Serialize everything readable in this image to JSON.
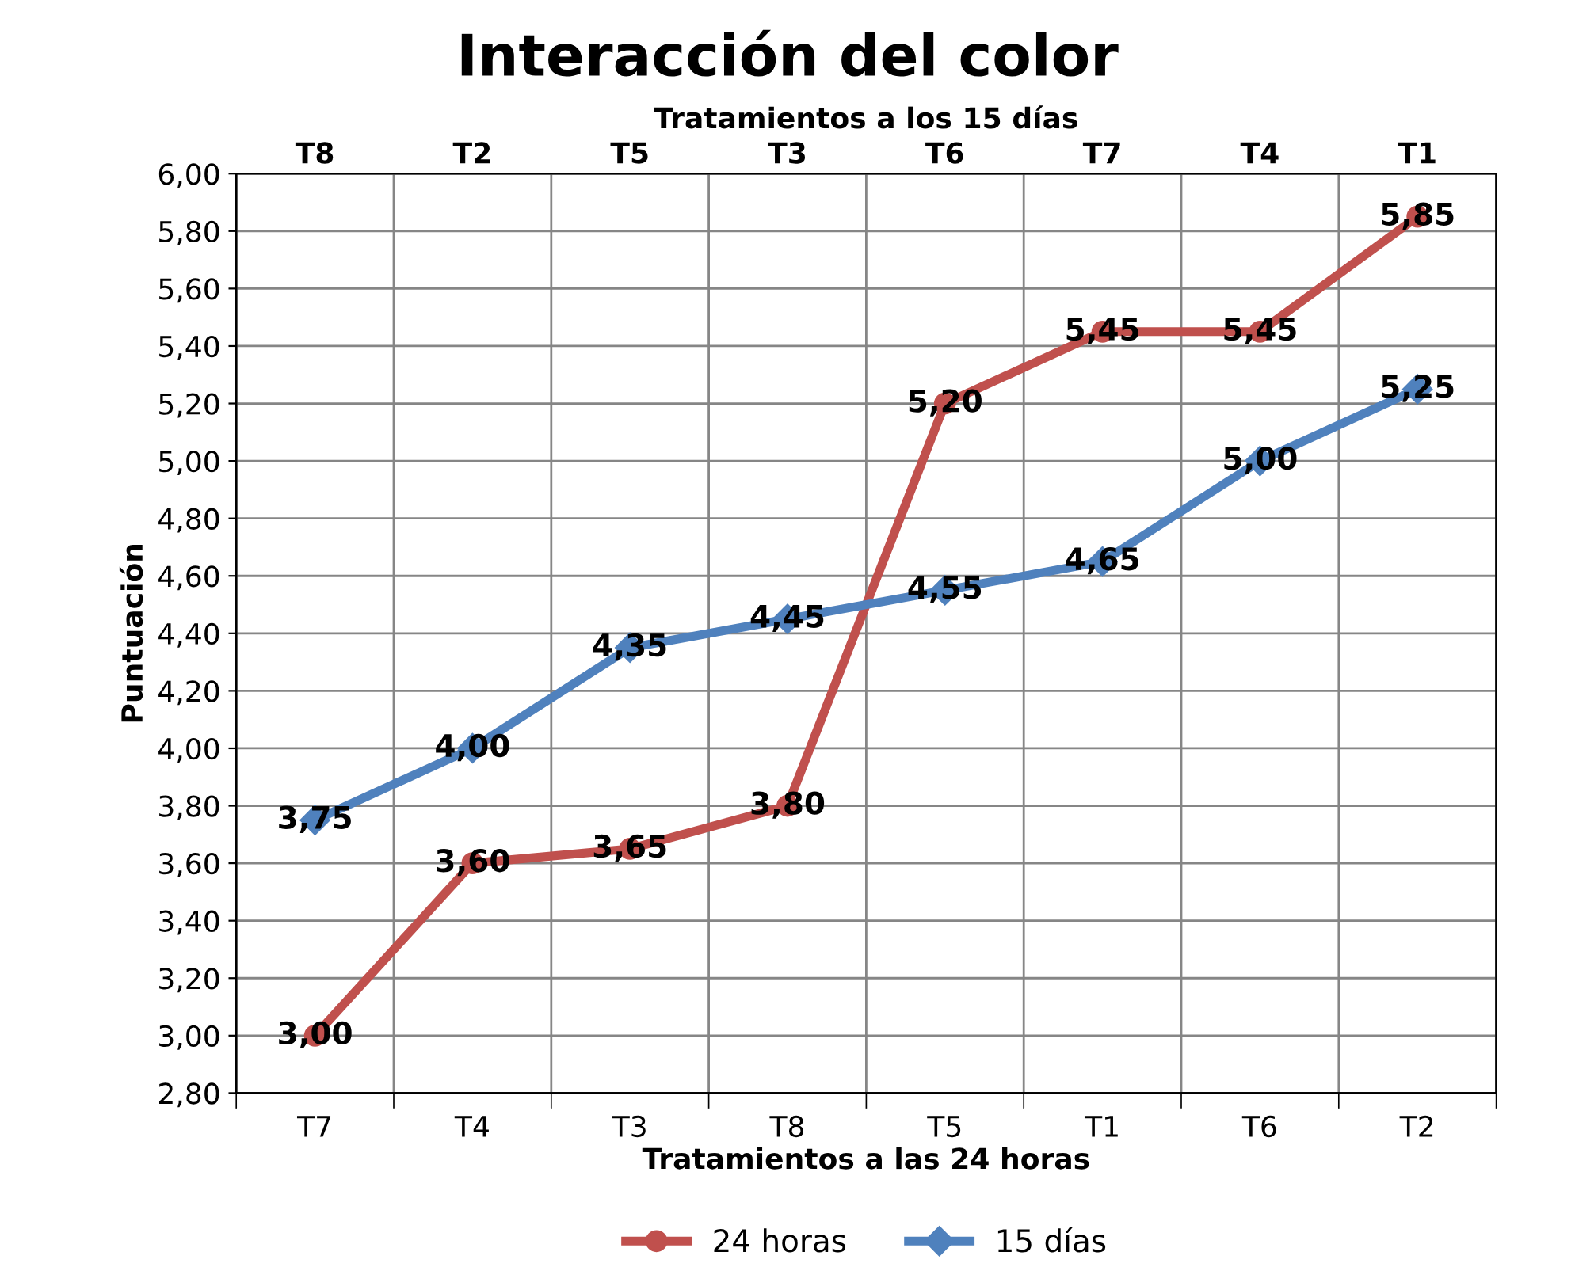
{
  "chart_data": {
    "type": "line",
    "title": "Interacción del color",
    "xlabel": "Tratamientos a las 24 horas",
    "x2label": "Tratamientos a los 15 días",
    "ylabel": "Puntuación",
    "categories": [
      "T7",
      "T4",
      "T3",
      "T8",
      "T5",
      "T1",
      "T6",
      "T2"
    ],
    "series": [
      {
        "name": "24 horas",
        "color": "#c0504d",
        "marker": "circle",
        "values": [
          3.0,
          3.6,
          3.65,
          3.8,
          5.2,
          5.45,
          5.45,
          5.85
        ],
        "value_labels": [
          "3,00",
          "3,60",
          "3,65",
          "3,80",
          "5,20",
          "5,45",
          "5,45",
          "5,85"
        ]
      },
      {
        "name": "15 días",
        "color": "#4f81bd",
        "marker": "diamond",
        "values": [
          3.75,
          4.0,
          4.35,
          4.45,
          4.55,
          4.65,
          5.0,
          5.25
        ],
        "value_labels": [
          "3,75",
          "4,00",
          "4,35",
          "4,45",
          "4,55",
          "4,65",
          "5,00",
          "5,25"
        ]
      }
    ],
    "annotations": [
      "T8",
      "T2",
      "T5",
      "T3",
      "T6",
      "T7",
      "T4",
      "T1"
    ],
    "ylim": [
      2.8,
      6.0
    ],
    "yticks": [
      {
        "value": 2.8,
        "label": "2,80"
      },
      {
        "value": 3.0,
        "label": "3,00"
      },
      {
        "value": 3.2,
        "label": "3,20"
      },
      {
        "value": 3.4,
        "label": "3,40"
      },
      {
        "value": 3.6,
        "label": "3,60"
      },
      {
        "value": 3.8,
        "label": "3,80"
      },
      {
        "value": 4.0,
        "label": "4,00"
      },
      {
        "value": 4.2,
        "label": "4,20"
      },
      {
        "value": 4.4,
        "label": "4,40"
      },
      {
        "value": 4.6,
        "label": "4,60"
      },
      {
        "value": 4.8,
        "label": "4,80"
      },
      {
        "value": 5.0,
        "label": "5,00"
      },
      {
        "value": 5.2,
        "label": "5,20"
      },
      {
        "value": 5.4,
        "label": "5,40"
      },
      {
        "value": 5.6,
        "label": "5,60"
      },
      {
        "value": 5.8,
        "label": "5,80"
      },
      {
        "value": 6.0,
        "label": "6,00"
      }
    ],
    "grid": true,
    "legend": "bottom",
    "line_style": "solid"
  }
}
